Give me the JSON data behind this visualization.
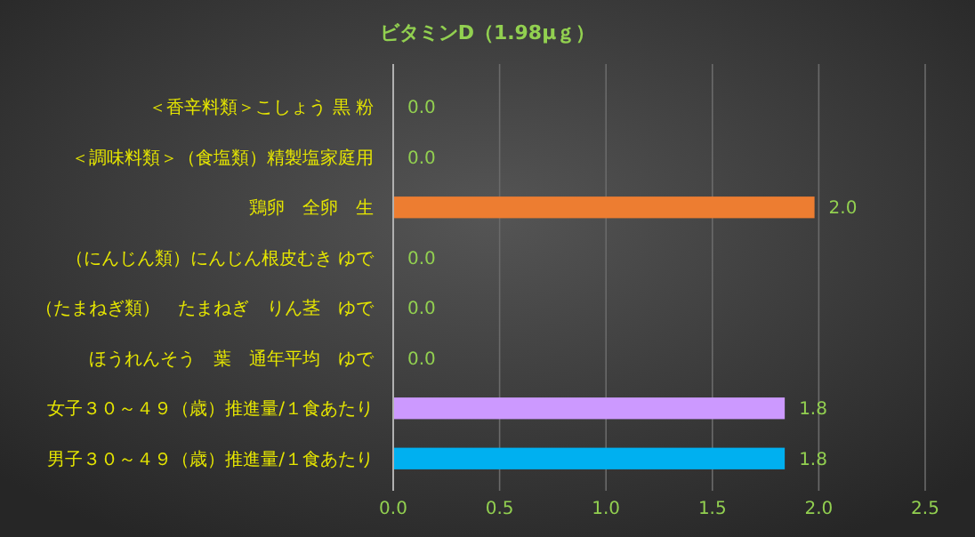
{
  "chart_data": {
    "type": "bar",
    "orientation": "horizontal",
    "title": "ビタミンD（1.98μｇ）",
    "categories": [
      "＜香辛料類＞こしょう 黒 粉",
      "＜調味料類＞（食塩類）精製塩家庭用",
      "鶏卵　全卵　生",
      "（にんじん類）にんじん根皮むき ゆで",
      "（たまねぎ類）　たまねぎ　りん茎　ゆで",
      "ほうれんそう　葉　通年平均　ゆで",
      "女子３０～４９（歳）推進量/１食あたり",
      "男子３０～４９（歳）推進量/１食あたり"
    ],
    "values": [
      0,
      0,
      1.98,
      0,
      0,
      0,
      1.84,
      1.84
    ],
    "value_labels": [
      "0.0",
      "0.0",
      "2.0",
      "0.0",
      "0.0",
      "0.0",
      "1.8",
      "1.8"
    ],
    "colors": [
      "#5b9bd5",
      "#5b9bd5",
      "#ed7d31",
      "#5b9bd5",
      "#5b9bd5",
      "#5b9bd5",
      "#cc99ff",
      "#00b0f0"
    ],
    "xlim": [
      0,
      2.5
    ],
    "xticks": [
      {
        "value": 0,
        "label": "0.0"
      },
      {
        "value": 0.5,
        "label": "0.5"
      },
      {
        "value": 1,
        "label": "1.0"
      },
      {
        "value": 1.5,
        "label": "1.5"
      },
      {
        "value": 2,
        "label": "2.0"
      },
      {
        "value": 2.5,
        "label": "2.5"
      }
    ],
    "grid": "x"
  }
}
